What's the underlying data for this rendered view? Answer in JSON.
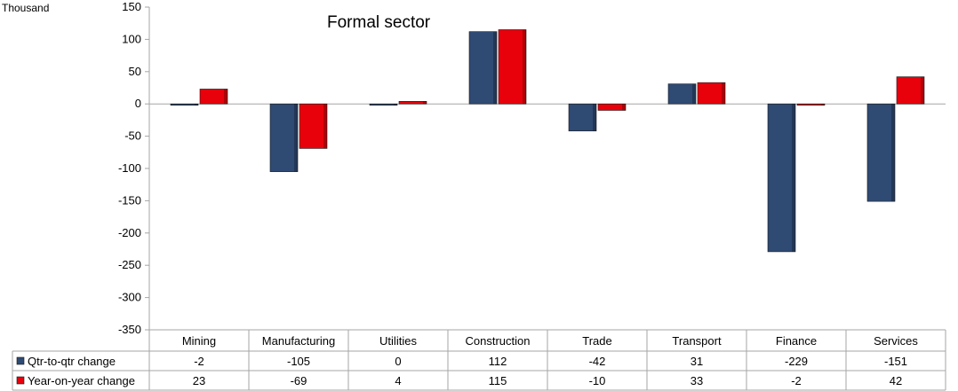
{
  "chart_data": {
    "type": "bar",
    "title": "Formal sector",
    "unit_label": "Thousand",
    "categories": [
      "Mining",
      "Manufacturing",
      "Utilities",
      "Construction",
      "Trade",
      "Transport",
      "Finance",
      "Services"
    ],
    "series": [
      {
        "name": "Qtr-to-qtr change",
        "values": [
          -2,
          -105,
          0,
          112,
          -42,
          31,
          -229,
          -151
        ],
        "color": "#2f4a73"
      },
      {
        "name": "Year-on-year change",
        "values": [
          23,
          -69,
          4,
          115,
          -10,
          33,
          -2,
          42
        ],
        "color": "#e8000b"
      }
    ],
    "ylim": [
      -350,
      150
    ],
    "yticks": [
      150,
      100,
      50,
      0,
      -50,
      -100,
      -150,
      -200,
      -250,
      -300,
      -350
    ],
    "grid": false,
    "legend": "data-table"
  }
}
